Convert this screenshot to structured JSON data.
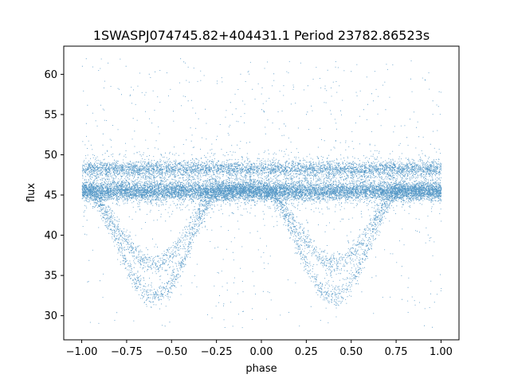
{
  "chart_data": {
    "type": "scatter",
    "title": "1SWASPJ074745.82+404431.1 Period 23782.86523s",
    "xlabel": "phase",
    "ylabel": "flux",
    "xlim": [
      -1.1,
      1.1
    ],
    "ylim": [
      27,
      63.5
    ],
    "xticks": [
      -1.0,
      -0.75,
      -0.5,
      -0.25,
      0.0,
      0.25,
      0.5,
      0.75,
      1.0
    ],
    "xtick_labels": [
      "−1.00",
      "−0.75",
      "−0.50",
      "−0.25",
      "0.00",
      "0.25",
      "0.50",
      "0.75",
      "1.00"
    ],
    "yticks": [
      30,
      35,
      40,
      45,
      50,
      55,
      60
    ],
    "ytick_labels": [
      "30",
      "35",
      "40",
      "45",
      "50",
      "55",
      "60"
    ],
    "grid": false,
    "legend": "none",
    "marker_color": "#1f77b4",
    "point_count_approx": 20000,
    "phase_range": [
      -1.0,
      1.0
    ],
    "baseline_flux": 45.5,
    "upper_band_flux": 48.3,
    "eclipses": [
      {
        "center_phase": -0.6,
        "ingress_phase": -0.95,
        "egress_phase": -0.25,
        "min_flux_lower_branch": 32.5,
        "min_flux_upper_branch": 36.5
      },
      {
        "center_phase": 0.4,
        "ingress_phase": 0.05,
        "egress_phase": 0.75,
        "min_flux_lower_branch": 32.5,
        "min_flux_upper_branch": 36.5
      }
    ],
    "scatter_range_flux": [
      28.5,
      62
    ]
  }
}
